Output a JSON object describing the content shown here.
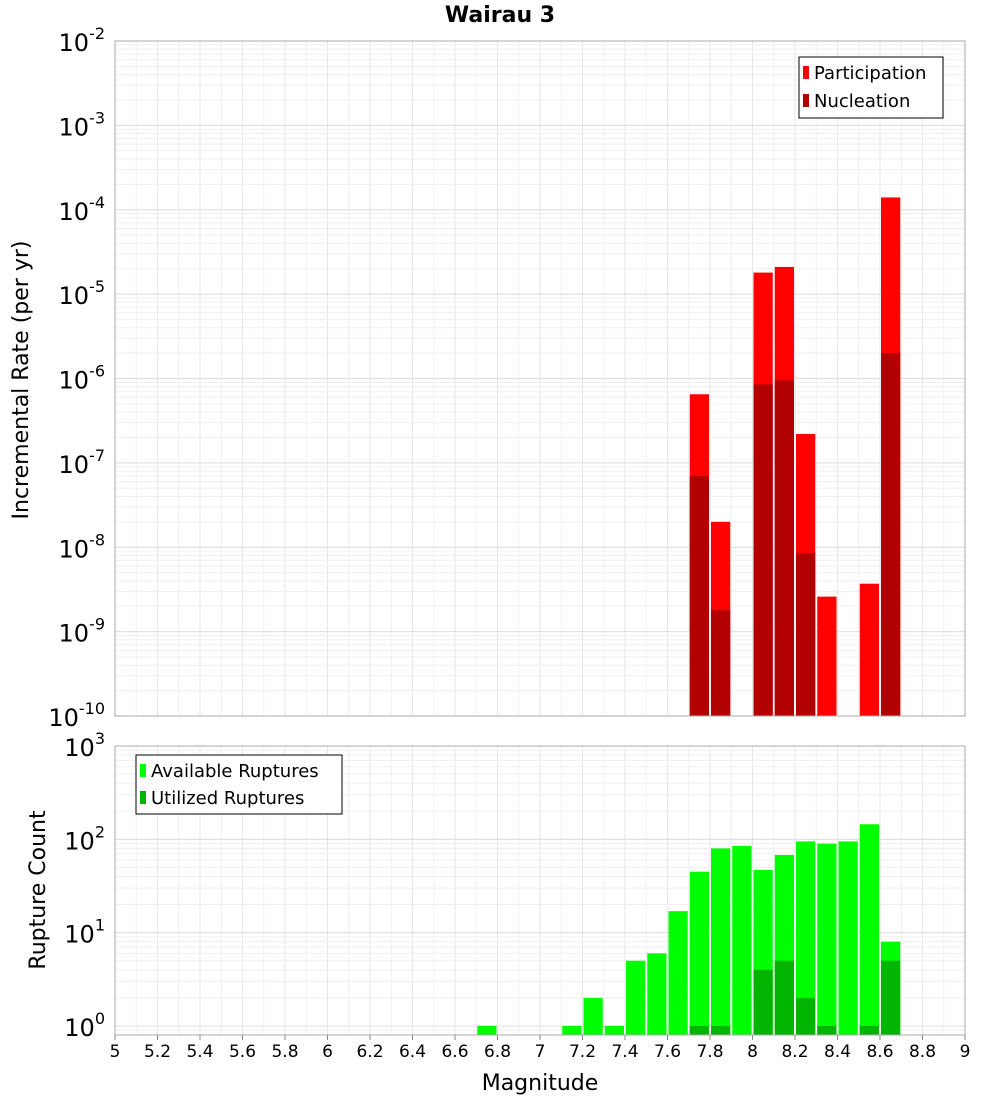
{
  "chart_data": [
    {
      "type": "bar",
      "title": "Wairau 3",
      "ylabel": "Incremental Rate (per yr)",
      "yscale": "log",
      "ylim": [
        1e-10,
        0.01
      ],
      "xlim": [
        5,
        9
      ],
      "grid": true,
      "legend": "top-right",
      "x": [
        7.75,
        7.85,
        8.05,
        8.15,
        8.25,
        8.35,
        8.55,
        8.65
      ],
      "y_tick_exponents": [
        "-10",
        "-9",
        "-8",
        "-7",
        "-6",
        "-5",
        "-4",
        "-3",
        "-2"
      ],
      "y_tick_base": "10",
      "series": [
        {
          "name": "Participation",
          "color": "#ff0000",
          "values": [
            6.5e-07,
            2e-08,
            1.8e-05,
            2.1e-05,
            2.2e-07,
            2.6e-09,
            3.7e-09,
            0.00014
          ]
        },
        {
          "name": "Nucleation",
          "color": "#b20000",
          "values": [
            7e-08,
            1.8e-09,
            8.5e-07,
            9.5e-07,
            8.5e-09,
            null,
            null,
            2e-06
          ]
        }
      ]
    },
    {
      "type": "bar",
      "xlabel": "Magnitude",
      "ylabel": "Rupture Count",
      "yscale": "log",
      "ylim": [
        0.8,
        1000
      ],
      "xlim": [
        5,
        9
      ],
      "grid": true,
      "legend": "top-left",
      "x": [
        6.75,
        7.15,
        7.25,
        7.35,
        7.45,
        7.55,
        7.65,
        7.75,
        7.85,
        7.95,
        8.05,
        8.15,
        8.25,
        8.35,
        8.45,
        8.55,
        8.65
      ],
      "x_ticks": [
        "5",
        "5.2",
        "5.4",
        "5.6",
        "5.8",
        "6",
        "6.2",
        "6.4",
        "6.6",
        "6.8",
        "7",
        "7.2",
        "7.4",
        "7.6",
        "7.8",
        "8",
        "8.2",
        "8.4",
        "8.6",
        "8.8",
        "9"
      ],
      "y_tick_exponents": [
        "0",
        "1",
        "2",
        "3"
      ],
      "y_tick_base": "10",
      "series": [
        {
          "name": "Available Ruptures",
          "color": "#00ff00",
          "values": [
            1,
            1,
            2,
            1,
            5,
            6,
            17,
            45,
            80,
            85,
            47,
            68,
            95,
            90,
            95,
            145,
            8
          ]
        },
        {
          "name": "Utilized Ruptures",
          "color": "#00b400",
          "values": [
            null,
            null,
            null,
            null,
            null,
            null,
            null,
            1,
            1,
            null,
            4,
            5,
            2,
            1,
            null,
            1,
            5
          ]
        }
      ]
    }
  ]
}
